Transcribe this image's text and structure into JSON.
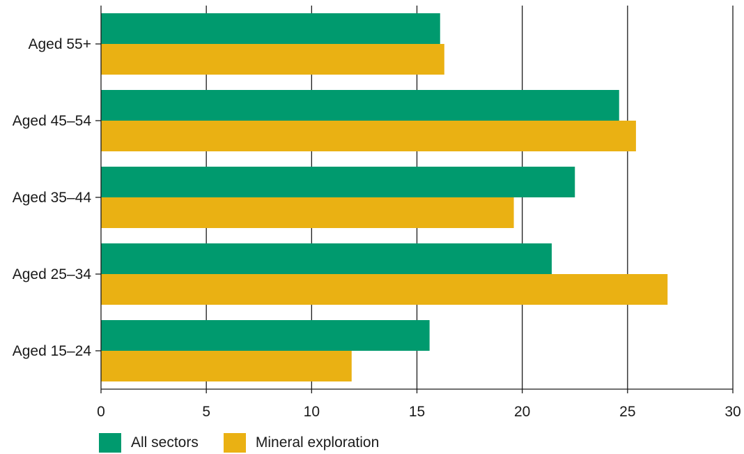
{
  "chart_data": {
    "type": "bar",
    "orientation": "horizontal",
    "categories": [
      "Aged 55+",
      "Aged 45–54",
      "Aged 35–44",
      "Aged 25–34",
      "Aged 15–24"
    ],
    "series": [
      {
        "name": "All sectors",
        "color": "#009A6E",
        "values": [
          16.1,
          24.6,
          22.5,
          21.4,
          15.6
        ]
      },
      {
        "name": "Mineral exploration",
        "color": "#EAB113",
        "values": [
          16.3,
          25.4,
          19.6,
          26.9,
          11.9
        ]
      }
    ],
    "xlim": [
      0,
      30
    ],
    "x_ticks": [
      "0",
      "5",
      "10",
      "15",
      "20",
      "25",
      "30"
    ],
    "grid": "vertical",
    "legend_position": "bottom-left",
    "title": "",
    "xlabel": "",
    "ylabel": ""
  },
  "legend": {
    "all_sectors": "All sectors",
    "mineral_exploration": "Mineral exploration"
  }
}
